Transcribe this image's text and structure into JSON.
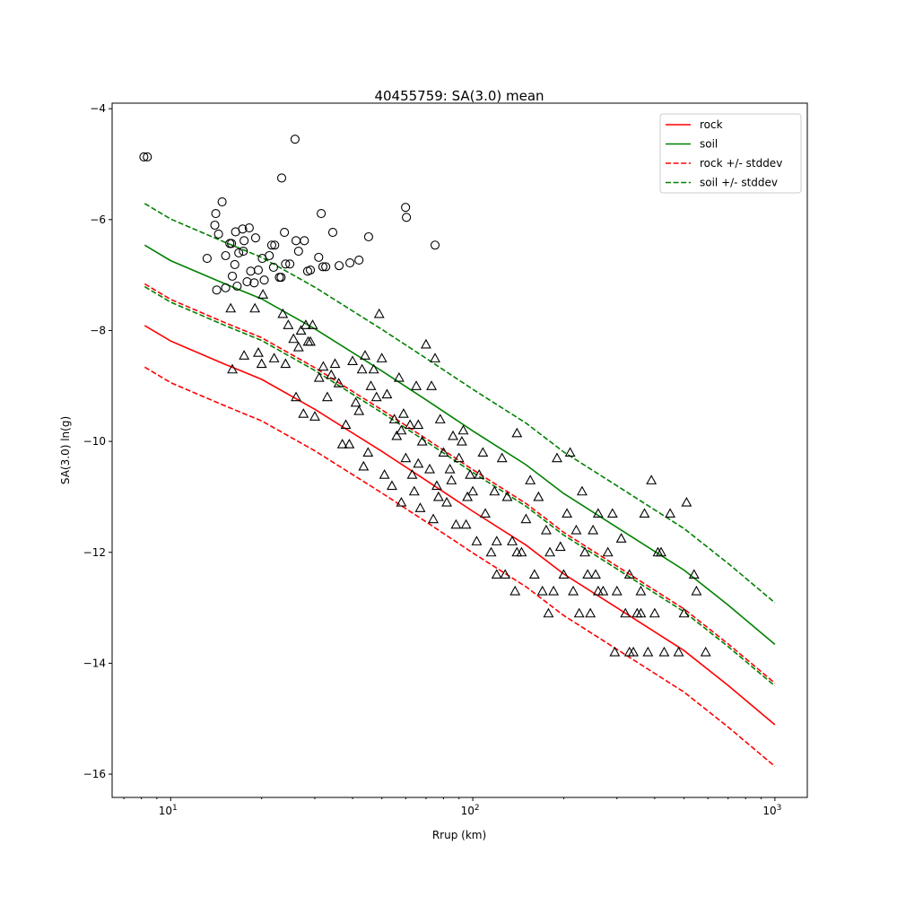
{
  "chart_data": {
    "type": "scatter",
    "title": "40455759: SA(3.0) mean",
    "xlabel": "Rrup (km)",
    "ylabel": "SA(3.0) ln(g)",
    "xscale": "log",
    "xlim": [
      6.4,
      1280
    ],
    "ylim": [
      -16.42,
      -3.9
    ],
    "yticks": [
      -4,
      -6,
      -8,
      -10,
      -12,
      -14,
      -16
    ],
    "ytick_labels": [
      "−4",
      "−6",
      "−8",
      "−10",
      "−12",
      "−14",
      "−16"
    ],
    "xticks": [
      10,
      100,
      1000
    ],
    "xtick_labels": [
      {
        "base": "10",
        "exp": "1"
      },
      {
        "base": "10",
        "exp": "2"
      },
      {
        "base": "10",
        "exp": "3"
      }
    ],
    "grid": false,
    "legend_position": "top-right",
    "curve_x": [
      8.2,
      10,
      15,
      20,
      30,
      50,
      70,
      100,
      150,
      200,
      300,
      500,
      700,
      1000
    ],
    "series": [
      {
        "name": "rock",
        "color": "#ff0000",
        "dash": false,
        "values": [
          -7.91,
          -8.19,
          -8.6,
          -8.88,
          -9.42,
          -10.18,
          -10.7,
          -11.26,
          -11.87,
          -12.39,
          -13.0,
          -13.77,
          -14.4,
          -15.11
        ]
      },
      {
        "name": "soil",
        "color": "#008000",
        "dash": false,
        "values": [
          -6.46,
          -6.74,
          -7.15,
          -7.43,
          -7.97,
          -8.73,
          -9.25,
          -9.81,
          -10.42,
          -10.94,
          -11.55,
          -12.32,
          -12.95,
          -13.66
        ]
      },
      {
        "name": "rock +/- stddev",
        "color": "#ff0000",
        "dash": true,
        "values": [
          -7.16,
          -7.44,
          -7.85,
          -8.13,
          -8.67,
          -9.43,
          -9.95,
          -10.51,
          -11.12,
          -11.64,
          -12.25,
          -13.02,
          -13.65,
          -14.36
        ],
        "values_lower": [
          -8.66,
          -8.94,
          -9.35,
          -9.63,
          -10.17,
          -10.93,
          -11.45,
          -12.01,
          -12.62,
          -13.14,
          -13.75,
          -14.52,
          -15.15,
          -15.86
        ]
      },
      {
        "name": "soil +/- stddev",
        "color": "#008000",
        "dash": true,
        "values": [
          -5.71,
          -5.99,
          -6.4,
          -6.68,
          -7.22,
          -7.98,
          -8.5,
          -9.06,
          -9.67,
          -10.19,
          -10.8,
          -11.57,
          -12.2,
          -12.91
        ],
        "values_lower": [
          -7.21,
          -7.49,
          -7.9,
          -8.18,
          -8.72,
          -9.48,
          -10.0,
          -10.56,
          -11.17,
          -11.69,
          -12.3,
          -13.07,
          -13.7,
          -14.41
        ]
      }
    ],
    "circles": [
      [
        8.15,
        -4.87
      ],
      [
        8.37,
        -4.87
      ],
      [
        13.2,
        -6.7
      ],
      [
        14.1,
        -5.89
      ],
      [
        14.0,
        -6.1
      ],
      [
        14.4,
        -6.26
      ],
      [
        14.8,
        -5.68
      ],
      [
        14.2,
        -7.27
      ],
      [
        15.2,
        -6.65
      ],
      [
        15.2,
        -7.23
      ],
      [
        15.7,
        -6.43
      ],
      [
        15.9,
        -6.43
      ],
      [
        16.0,
        -7.02
      ],
      [
        16.3,
        -6.81
      ],
      [
        16.4,
        -6.22
      ],
      [
        16.6,
        -7.2
      ],
      [
        16.8,
        -6.6
      ],
      [
        17.3,
        -6.17
      ],
      [
        17.5,
        -6.38
      ],
      [
        17.4,
        -6.57
      ],
      [
        17.9,
        -7.12
      ],
      [
        18.2,
        -6.15
      ],
      [
        18.4,
        -6.93
      ],
      [
        19.1,
        -6.33
      ],
      [
        18.9,
        -7.14
      ],
      [
        19.5,
        -6.91
      ],
      [
        20.1,
        -6.7
      ],
      [
        20.4,
        -7.09
      ],
      [
        21.2,
        -6.65
      ],
      [
        21.6,
        -6.46
      ],
      [
        21.9,
        -6.86
      ],
      [
        22.1,
        -6.46
      ],
      [
        22.9,
        -7.04
      ],
      [
        23.2,
        -7.04
      ],
      [
        23.8,
        -6.23
      ],
      [
        24.0,
        -6.8
      ],
      [
        24.8,
        -6.8
      ],
      [
        25.8,
        -4.55
      ],
      [
        23.3,
        -5.25
      ],
      [
        26.0,
        -6.38
      ],
      [
        26.5,
        -6.57
      ],
      [
        27.7,
        -6.38
      ],
      [
        28.4,
        -6.93
      ],
      [
        29.0,
        -6.91
      ],
      [
        30.9,
        -6.68
      ],
      [
        31.5,
        -5.89
      ],
      [
        31.9,
        -6.85
      ],
      [
        32.6,
        -6.85
      ],
      [
        34.4,
        -6.23
      ],
      [
        36.1,
        -6.83
      ],
      [
        39.2,
        -6.78
      ],
      [
        42.0,
        -6.73
      ],
      [
        45.2,
        -6.31
      ],
      [
        59.9,
        -5.78
      ],
      [
        60.3,
        -5.96
      ],
      [
        75.0,
        -6.46
      ]
    ],
    "triangles": [
      [
        15.8,
        -7.6
      ],
      [
        16,
        -8.7
      ],
      [
        17.5,
        -8.45
      ],
      [
        19,
        -7.6
      ],
      [
        19.5,
        -8.4
      ],
      [
        20,
        -8.6
      ],
      [
        20.2,
        -7.35
      ],
      [
        22,
        -8.5
      ],
      [
        23.5,
        -7.7
      ],
      [
        24,
        -8.6
      ],
      [
        24.5,
        -7.9
      ],
      [
        25.5,
        -8.15
      ],
      [
        26.5,
        -8.3
      ],
      [
        26,
        -9.2
      ],
      [
        27,
        -8.0
      ],
      [
        27.5,
        -9.5
      ],
      [
        28,
        -7.9
      ],
      [
        28.5,
        -8.2
      ],
      [
        29,
        -8.2
      ],
      [
        29.5,
        -7.9
      ],
      [
        30,
        -9.55
      ],
      [
        31,
        -8.85
      ],
      [
        32,
        -8.65
      ],
      [
        33,
        -9.2
      ],
      [
        34,
        -8.8
      ],
      [
        35,
        -8.6
      ],
      [
        36,
        -8.95
      ],
      [
        37,
        -10.05
      ],
      [
        38,
        -9.7
      ],
      [
        39,
        -10.05
      ],
      [
        40,
        -8.55
      ],
      [
        41,
        -9.3
      ],
      [
        42,
        -9.45
      ],
      [
        43,
        -8.7
      ],
      [
        43.5,
        -10.45
      ],
      [
        44,
        -8.45
      ],
      [
        45,
        -10.2
      ],
      [
        46,
        -9.0
      ],
      [
        47,
        -8.7
      ],
      [
        48,
        -9.2
      ],
      [
        49,
        -7.7
      ],
      [
        50,
        -8.5
      ],
      [
        51,
        -10.6
      ],
      [
        52,
        -9.15
      ],
      [
        54,
        -10.8
      ],
      [
        55,
        -9.6
      ],
      [
        56,
        -9.9
      ],
      [
        57,
        -8.85
      ],
      [
        58,
        -11.1
      ],
      [
        59,
        -9.5
      ],
      [
        60,
        -10.3
      ],
      [
        62,
        -9.7
      ],
      [
        63,
        -10.6
      ],
      [
        64,
        -10.9
      ],
      [
        65,
        -9.0
      ],
      [
        66,
        -10.4
      ],
      [
        67,
        -11.2
      ],
      [
        68,
        -10.0
      ],
      [
        70,
        -8.25
      ],
      [
        72,
        -10.5
      ],
      [
        73,
        -9.0
      ],
      [
        74,
        -11.4
      ],
      [
        75,
        -8.5
      ],
      [
        76,
        -10.8
      ],
      [
        78,
        -9.6
      ],
      [
        80,
        -10.2
      ],
      [
        82,
        -11.1
      ],
      [
        84,
        -10.5
      ],
      [
        86,
        -9.9
      ],
      [
        88,
        -11.5
      ],
      [
        90,
        -10.3
      ],
      [
        92,
        -10.0
      ],
      [
        95,
        -11.5
      ],
      [
        98,
        -10.6
      ],
      [
        100,
        -10.9
      ],
      [
        103,
        -11.8
      ],
      [
        105,
        -10.6
      ],
      [
        108,
        -10.2
      ],
      [
        110,
        -11.3
      ],
      [
        115,
        -12.0
      ],
      [
        118,
        -10.9
      ],
      [
        120,
        -11.8
      ],
      [
        125,
        -10.3
      ],
      [
        128,
        -12.4
      ],
      [
        130,
        -11.0
      ],
      [
        135,
        -11.8
      ],
      [
        138,
        -12.7
      ],
      [
        140,
        -9.85
      ],
      [
        145,
        -12.0
      ],
      [
        150,
        -11.4
      ],
      [
        155,
        -10.7
      ],
      [
        160,
        -12.4
      ],
      [
        165,
        -11.0
      ],
      [
        170,
        -12.7
      ],
      [
        175,
        -11.6
      ],
      [
        178,
        -13.1
      ],
      [
        180,
        -12.0
      ],
      [
        185,
        -12.7
      ],
      [
        190,
        -10.3
      ],
      [
        195,
        -11.9
      ],
      [
        200,
        -12.4
      ],
      [
        205,
        -11.3
      ],
      [
        210,
        -10.2
      ],
      [
        215,
        -12.7
      ],
      [
        220,
        -11.6
      ],
      [
        225,
        -13.1
      ],
      [
        230,
        -10.9
      ],
      [
        235,
        -12.0
      ],
      [
        240,
        -12.4
      ],
      [
        245,
        -13.1
      ],
      [
        250,
        -11.6
      ],
      [
        255,
        -12.4
      ],
      [
        260,
        -11.3
      ],
      [
        270,
        -12.7
      ],
      [
        280,
        -12.0
      ],
      [
        290,
        -11.3
      ],
      [
        295,
        -13.8
      ],
      [
        300,
        -12.7
      ],
      [
        310,
        -11.75
      ],
      [
        320,
        -13.1
      ],
      [
        330,
        -12.4
      ],
      [
        340,
        -13.8
      ],
      [
        350,
        -13.1
      ],
      [
        360,
        -12.7
      ],
      [
        370,
        -11.3
      ],
      [
        380,
        -13.8
      ],
      [
        390,
        -10.7
      ],
      [
        400,
        -13.1
      ],
      [
        410,
        -12.0
      ],
      [
        430,
        -13.8
      ],
      [
        450,
        -11.3
      ],
      [
        480,
        -13.8
      ],
      [
        500,
        -13.1
      ],
      [
        510,
        -11.1
      ],
      [
        540,
        -12.4
      ],
      [
        550,
        -12.7
      ],
      [
        590,
        -13.8
      ],
      [
        420,
        -12.0
      ],
      [
        360,
        -13.1
      ],
      [
        330,
        -13.8
      ],
      [
        260,
        -12.7
      ],
      [
        140,
        -12.0
      ],
      [
        120,
        -12.4
      ],
      [
        96,
        -11.0
      ],
      [
        85,
        -10.7
      ],
      [
        77,
        -11.0
      ],
      [
        93,
        -9.8
      ],
      [
        66,
        -9.7
      ],
      [
        58,
        -9.8
      ]
    ]
  }
}
